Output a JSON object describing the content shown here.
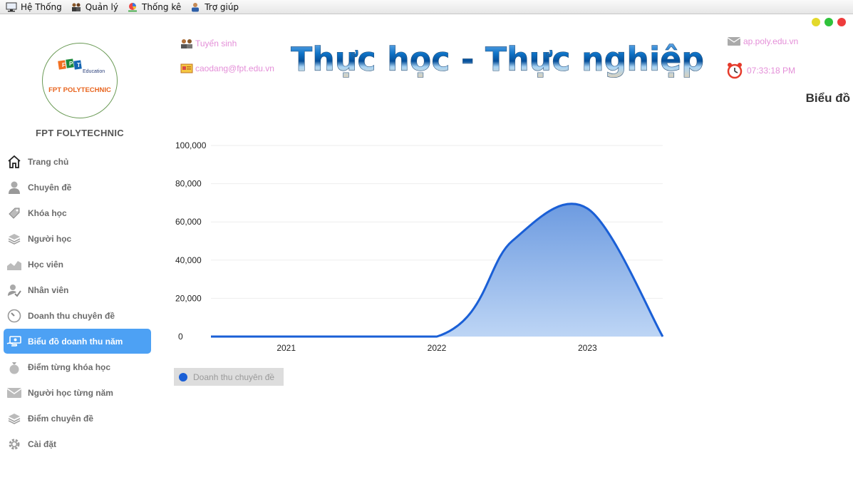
{
  "menubar": {
    "items": [
      {
        "label": "Hệ Thống",
        "icon": "monitor-icon"
      },
      {
        "label": "Quản lý",
        "icon": "people-icon"
      },
      {
        "label": "Thống kê",
        "icon": "chart-icon"
      },
      {
        "label": "Trợ giúp",
        "icon": "help-user-icon"
      }
    ]
  },
  "window_controls": {
    "colors": [
      "#e3d92b",
      "#2fc23a",
      "#ee3c3c"
    ]
  },
  "sidebar": {
    "logo_top": "FPT",
    "logo_sub": "Education",
    "logo_text": "FPT POLYTECHNIC",
    "brand": "FPT FOLYTECHNIC",
    "items": [
      {
        "label": "Trang chủ",
        "icon": "home-icon"
      },
      {
        "label": "Chuyên đề",
        "icon": "user-icon"
      },
      {
        "label": "Khóa học",
        "icon": "tag-icon"
      },
      {
        "label": "Người học",
        "icon": "stack-icon"
      },
      {
        "label": "Học viên",
        "icon": "trend-icon"
      },
      {
        "label": "Nhân viên",
        "icon": "user-check-icon"
      },
      {
        "label": "Doanh thu chuyên đề",
        "icon": "gauge-icon"
      },
      {
        "label": "Biểu đồ doanh thu năm",
        "icon": "money-hand-icon",
        "active": true
      },
      {
        "label": "Điểm từng khóa học",
        "icon": "bag-icon"
      },
      {
        "label": "Người học từng năm",
        "icon": "mail-icon"
      },
      {
        "label": "Điểm chuyên đề",
        "icon": "layers-icon"
      },
      {
        "label": "Cài đặt",
        "icon": "gear-icon"
      }
    ],
    "active_color": "#4da1f4"
  },
  "header": {
    "admissions": "Tuyển sinh",
    "email": "caodang@fpt.edu.vn",
    "banner_text": "Thực học - Thực nghiệp",
    "website": "ap.poly.edu.vn",
    "clock": "07:33:18 PM",
    "link_color": "#e48fd8"
  },
  "page_title": "Biểu đồ",
  "chart_data": {
    "type": "area",
    "categories": [
      "2021",
      "2022",
      "2023"
    ],
    "series": [
      {
        "name": "Doanh thu chuyên đề",
        "color": "#1a5fd6",
        "points": [
          [
            2020.5,
            0
          ],
          [
            2022.0,
            0
          ],
          [
            2022.5,
            50000
          ],
          [
            2023.0,
            67000
          ],
          [
            2023.5,
            0
          ]
        ]
      }
    ],
    "y_ticks": [
      "0",
      "20,000",
      "40,000",
      "60,000",
      "80,000",
      "100,000"
    ],
    "ylim": [
      0,
      100000
    ],
    "grid": true,
    "legend_position": "bottom-left"
  },
  "legend": {
    "label": "Doanh thu chuyên đề",
    "color": "#1a5fd6"
  }
}
